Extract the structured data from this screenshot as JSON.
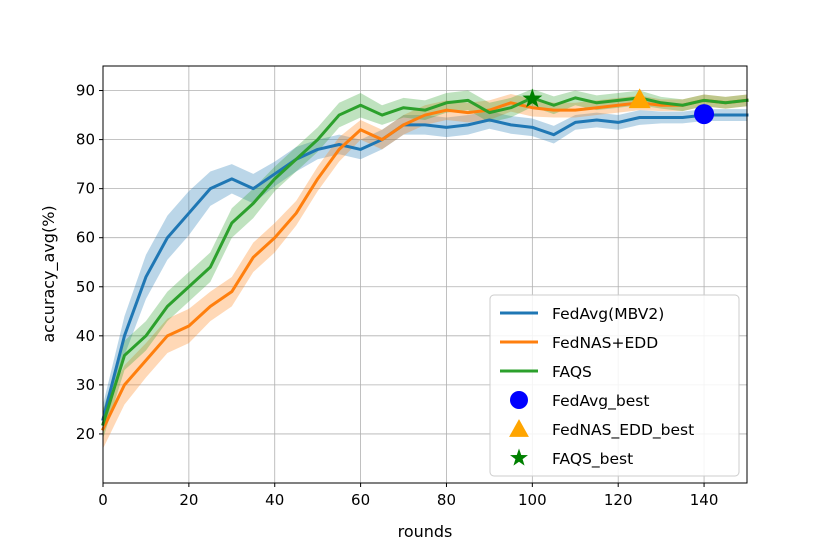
{
  "chart_data": {
    "type": "line",
    "title": "",
    "xlabel": "rounds",
    "ylabel": "accuracy_avg(%)",
    "xlim": [
      0,
      150
    ],
    "ylim": [
      10,
      95
    ],
    "xticks": [
      0,
      20,
      40,
      60,
      80,
      100,
      120,
      140
    ],
    "yticks": [
      20,
      30,
      40,
      50,
      60,
      70,
      80,
      90
    ],
    "grid": true,
    "legend_position": "lower-right",
    "x": [
      0,
      5,
      10,
      15,
      20,
      25,
      30,
      35,
      40,
      45,
      50,
      55,
      60,
      65,
      70,
      75,
      80,
      85,
      90,
      95,
      100,
      105,
      110,
      115,
      120,
      125,
      130,
      135,
      140,
      145,
      150
    ],
    "series": [
      {
        "name": "FedAvg(MBV2)",
        "color": "#1f77b4",
        "values": [
          23,
          40,
          52,
          60,
          65,
          70,
          72,
          70,
          73,
          76,
          78,
          79,
          78,
          80,
          83,
          83,
          82.5,
          83,
          84,
          83,
          82.5,
          81,
          83.5,
          84,
          83.5,
          84.5,
          84.5,
          84.5,
          85,
          85,
          85
        ],
        "band": [
          3,
          4,
          4.5,
          4.5,
          4.5,
          3.5,
          3,
          3,
          2.5,
          2.5,
          2,
          2,
          2,
          2,
          2,
          2,
          2,
          2,
          1.8,
          1.8,
          1.8,
          1.8,
          1.5,
          1.5,
          1.5,
          1.5,
          1.2,
          1.2,
          1.2,
          1.2,
          1.2
        ]
      },
      {
        "name": "FedNAS+EDD",
        "color": "#ff7f0e",
        "values": [
          21,
          30,
          35,
          40,
          42,
          46,
          49,
          56,
          60,
          65,
          72,
          78,
          82,
          80,
          83,
          85,
          86,
          85.5,
          86,
          87.5,
          86.5,
          86,
          86,
          86.5,
          87,
          87.5,
          87,
          87,
          88,
          87.5,
          88
        ],
        "band": [
          4,
          4,
          3.5,
          3.5,
          3.5,
          3,
          3,
          3,
          3,
          2.5,
          2.5,
          2.5,
          2,
          2,
          2,
          2,
          2,
          2,
          2,
          1.8,
          1.8,
          1.5,
          1.5,
          1.5,
          1.5,
          1.5,
          1.2,
          1.2,
          1.2,
          1.2,
          1.2
        ]
      },
      {
        "name": "FAQS",
        "color": "#2ca02c",
        "values": [
          22,
          36,
          40,
          46,
          50,
          54,
          63,
          67,
          72,
          76,
          80,
          85,
          87,
          85,
          86.5,
          86,
          87.5,
          88,
          85.5,
          86.5,
          88.5,
          87,
          88.5,
          87.5,
          88,
          88.5,
          87.5,
          87,
          88,
          87.5,
          88
        ],
        "band": [
          3,
          3,
          3,
          3,
          3,
          3,
          3,
          3,
          2.5,
          2.5,
          2.5,
          2.5,
          2.5,
          2,
          2,
          2,
          2,
          2,
          2,
          2,
          1.8,
          1.8,
          1.5,
          1.5,
          1.5,
          1.5,
          1.2,
          1.2,
          1.2,
          1.2,
          1.2
        ]
      }
    ],
    "markers": [
      {
        "name": "FedAvg_best",
        "x": 140,
        "y": 85.2,
        "shape": "circle",
        "color": "#0000ff"
      },
      {
        "name": "FedNAS_EDD_best",
        "x": 125,
        "y": 88.2,
        "shape": "triangle",
        "color": "#ffa500"
      },
      {
        "name": "FAQS_best",
        "x": 100,
        "y": 88.3,
        "shape": "star",
        "color": "#008000"
      }
    ],
    "legend": [
      {
        "label": "FedAvg(MBV2)",
        "kind": "line",
        "color": "#1f77b4"
      },
      {
        "label": "FedNAS+EDD",
        "kind": "line",
        "color": "#ff7f0e"
      },
      {
        "label": "FAQS",
        "kind": "line",
        "color": "#2ca02c"
      },
      {
        "label": "FedAvg_best",
        "kind": "circle",
        "color": "#0000ff"
      },
      {
        "label": "FedNAS_EDD_best",
        "kind": "triangle",
        "color": "#ffa500"
      },
      {
        "label": "FAQS_best",
        "kind": "star",
        "color": "#008000"
      }
    ]
  }
}
